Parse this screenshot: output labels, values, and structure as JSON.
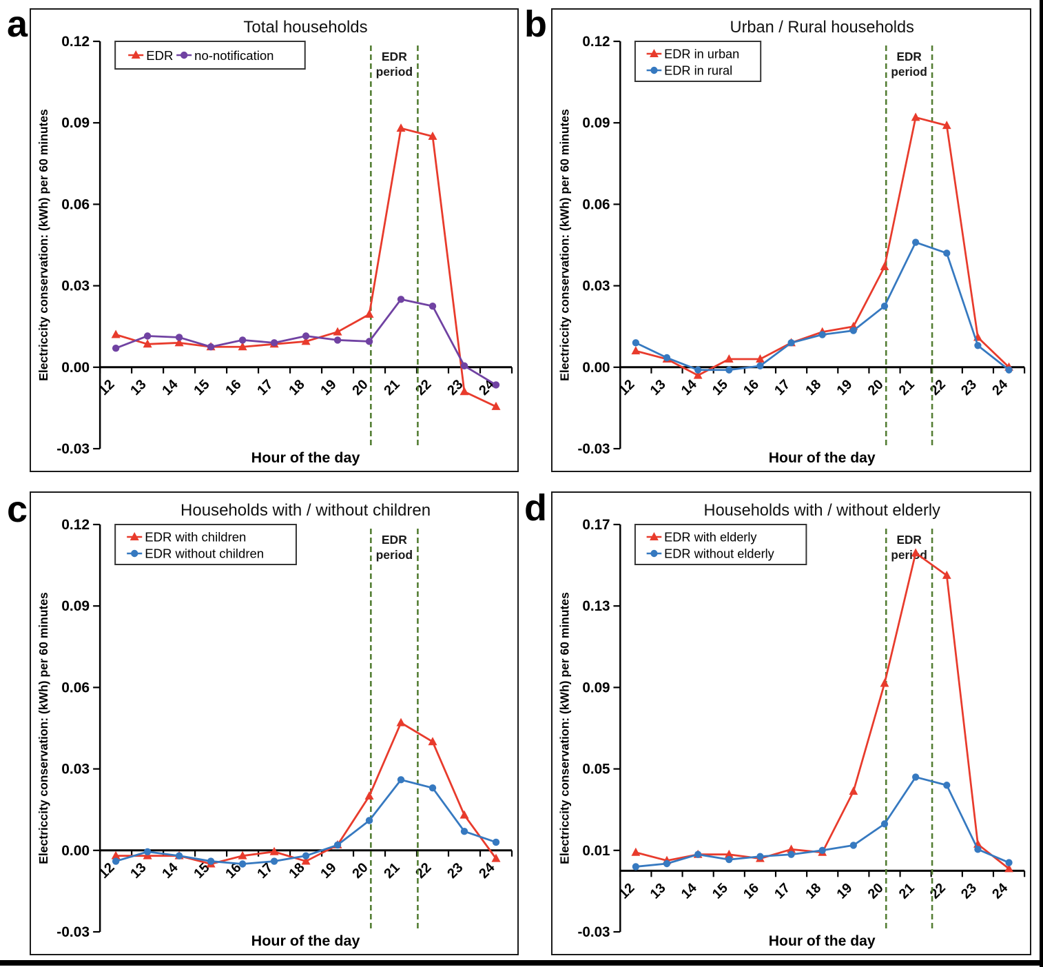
{
  "shared": {
    "categories": [
      "12",
      "13",
      "14",
      "15",
      "16",
      "17",
      "18",
      "19",
      "20",
      "21",
      "22",
      "23",
      "24"
    ],
    "xlabel": "Hour of the day",
    "ylabel": "Electriccity conservation: (kWh) per 60 minutes",
    "edr_band": {
      "start_hour": 20.05,
      "end_hour": 21.53,
      "label_line1": "EDR",
      "label_line2": "period"
    },
    "colors": {
      "red": "#e83b2c",
      "purple": "#7042a2",
      "blue": "#3679c0",
      "green": "#537d33",
      "axis": "#000000",
      "legend_border": "#333333"
    }
  },
  "chart_data": [
    {
      "letter": "a",
      "type": "line",
      "title": "Total households",
      "xlabel": "Hour of the day",
      "ylabel": "Electriccity conservation: (kWh) per 60 minutes",
      "y_ticks": [
        0.12,
        0.09,
        0.06,
        0.03,
        0.0,
        -0.03
      ],
      "ylim": [
        -0.03,
        0.12
      ],
      "legend_layout": "row",
      "series": [
        {
          "name": "EDR",
          "color": "red",
          "marker": "triangle",
          "values": [
            0.012,
            0.0085,
            0.009,
            0.0075,
            0.0075,
            0.0085,
            0.0095,
            0.013,
            0.0195,
            0.088,
            0.085,
            -0.009,
            -0.0145
          ]
        },
        {
          "name": "no-notification",
          "color": "purple",
          "marker": "circle",
          "values": [
            0.007,
            0.0115,
            0.011,
            0.0075,
            0.01,
            0.009,
            0.0115,
            0.01,
            0.0095,
            0.025,
            0.0225,
            0.0005,
            -0.0065
          ]
        }
      ]
    },
    {
      "letter": "b",
      "type": "line",
      "title": "Urban / Rural households",
      "xlabel": "Hour of the day",
      "ylabel": "Electriccity conservation: (kWh) per 60 minutes",
      "y_ticks": [
        0.12,
        0.09,
        0.06,
        0.03,
        0.0,
        -0.03
      ],
      "ylim": [
        -0.03,
        0.12
      ],
      "legend_layout": "column",
      "series": [
        {
          "name": "EDR in urban",
          "color": "red",
          "marker": "triangle",
          "values": [
            0.006,
            0.003,
            -0.003,
            0.003,
            0.003,
            0.009,
            0.013,
            0.015,
            0.037,
            0.092,
            0.089,
            0.011,
            0.0
          ]
        },
        {
          "name": "EDR in rural",
          "color": "blue",
          "marker": "circle",
          "values": [
            0.009,
            0.0035,
            -0.001,
            -0.001,
            0.0005,
            0.009,
            0.012,
            0.0135,
            0.0225,
            0.046,
            0.042,
            0.008,
            -0.001
          ]
        }
      ]
    },
    {
      "letter": "c",
      "type": "line",
      "title": "Households with / without children",
      "xlabel": "Hour of the day",
      "ylabel": "Electriccity conservation: (kWh) per 60 minutes",
      "y_ticks": [
        0.12,
        0.09,
        0.06,
        0.03,
        0.0,
        -0.03
      ],
      "ylim": [
        -0.03,
        0.12
      ],
      "legend_layout": "column",
      "series": [
        {
          "name": "EDR with children",
          "color": "red",
          "marker": "triangle",
          "values": [
            -0.002,
            -0.002,
            -0.002,
            -0.005,
            -0.002,
            -0.0005,
            -0.004,
            0.002,
            0.02,
            0.047,
            0.04,
            0.013,
            -0.003
          ]
        },
        {
          "name": "EDR without children",
          "color": "blue",
          "marker": "circle",
          "values": [
            -0.004,
            -0.0005,
            -0.002,
            -0.004,
            -0.005,
            -0.004,
            -0.002,
            0.002,
            0.011,
            0.026,
            0.023,
            0.007,
            0.003
          ]
        }
      ]
    },
    {
      "letter": "d",
      "type": "line",
      "title": "Households with / without elderly",
      "xlabel": "Hour of the day",
      "ylabel": "Electriccity conservation: (kWh) per 60 minutes",
      "y_ticks": [
        0.17,
        0.13,
        0.09,
        0.05,
        0.01,
        -0.03
      ],
      "ylim": [
        -0.03,
        0.17
      ],
      "legend_layout": "column",
      "series": [
        {
          "name": "EDR with elderly",
          "color": "red",
          "marker": "triangle",
          "values": [
            0.009,
            0.005,
            0.008,
            0.008,
            0.006,
            0.0105,
            0.009,
            0.039,
            0.092,
            0.156,
            0.145,
            0.013,
            0.001
          ]
        },
        {
          "name": "EDR without elderly",
          "color": "blue",
          "marker": "circle",
          "values": [
            0.002,
            0.0035,
            0.008,
            0.0055,
            0.007,
            0.008,
            0.01,
            0.0125,
            0.023,
            0.046,
            0.042,
            0.0105,
            0.004
          ]
        }
      ]
    }
  ]
}
